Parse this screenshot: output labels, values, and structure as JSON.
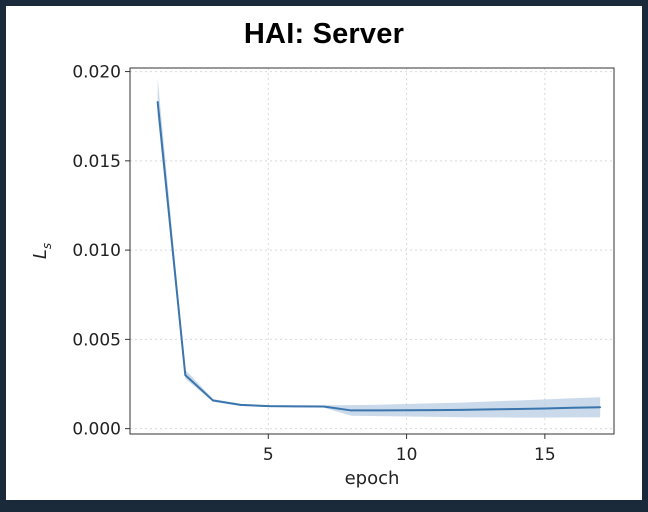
{
  "page": {
    "title": "HAI: Server"
  },
  "chart_data": {
    "type": "line",
    "title": "HAI: Server",
    "xlabel": "epoch",
    "ylabel": "L",
    "ylabel_subscript": "s",
    "xlim": [
      0,
      17.5
    ],
    "ylim": [
      -0.0003,
      0.0202
    ],
    "xticks": [
      5,
      10,
      15
    ],
    "xtick_labels": [
      "5",
      "10",
      "15"
    ],
    "yticks": [
      0.0,
      0.005,
      0.01,
      0.015,
      0.02
    ],
    "ytick_labels": [
      "0.000",
      "0.005",
      "0.010",
      "0.015",
      "0.020"
    ],
    "grid": true,
    "legend": "none",
    "series": [
      {
        "x": [
          1,
          2,
          3,
          4,
          5,
          6,
          7,
          8,
          9,
          10,
          11,
          12,
          13,
          14,
          15,
          16,
          17
        ],
        "values": [
          0.0183,
          0.003,
          0.00158,
          0.00133,
          0.00126,
          0.00125,
          0.00124,
          0.00102,
          0.00102,
          0.00103,
          0.00104,
          0.00105,
          0.00108,
          0.0011,
          0.00113,
          0.00117,
          0.0012
        ],
        "lower": [
          0.0175,
          0.0028,
          0.0015,
          0.00127,
          0.00121,
          0.0012,
          0.00118,
          0.00072,
          0.0007,
          0.00068,
          0.00066,
          0.00064,
          0.00063,
          0.00062,
          0.00062,
          0.00063,
          0.00064
        ],
        "upper": [
          0.0196,
          0.0033,
          0.00166,
          0.00139,
          0.00131,
          0.0013,
          0.0013,
          0.00132,
          0.00134,
          0.00138,
          0.00142,
          0.00146,
          0.00152,
          0.00158,
          0.00164,
          0.0017,
          0.00176
        ],
        "color": "#3a75ad",
        "band_color": "#b9cde3"
      }
    ]
  }
}
